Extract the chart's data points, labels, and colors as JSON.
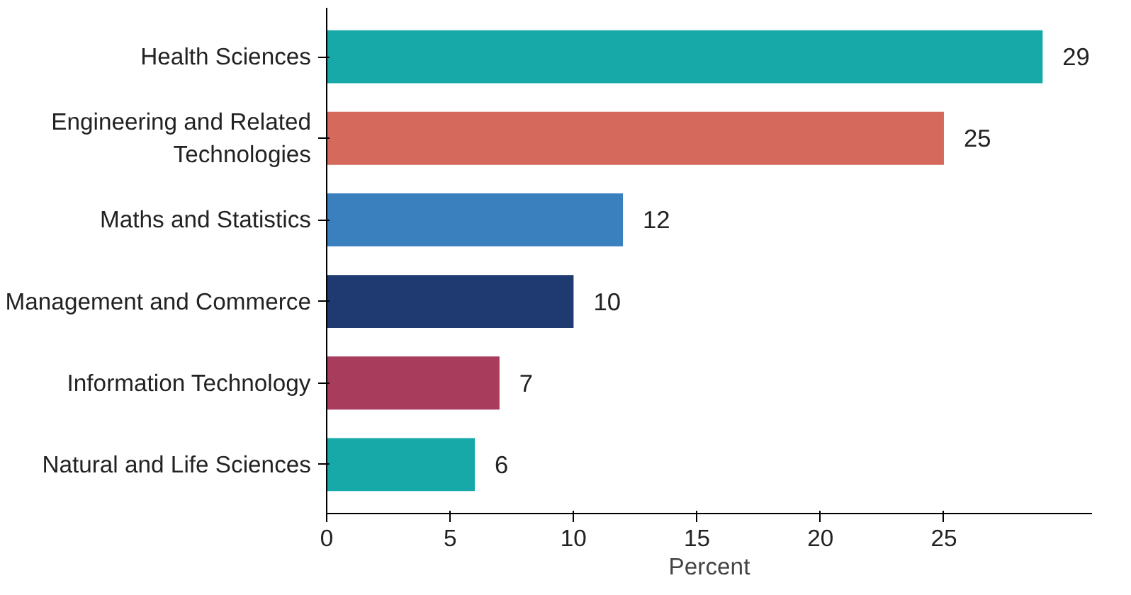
{
  "chart_data": {
    "type": "bar",
    "orientation": "horizontal",
    "xlabel": "Percent",
    "categories": [
      "Health Sciences",
      "Engineering and Related Technologies",
      "Maths and Statistics",
      "Management and Commerce",
      "Information Technology",
      "Natural and Life Sciences"
    ],
    "values": [
      29,
      25,
      12,
      10,
      7,
      6
    ],
    "colors": [
      "#17a8a8",
      "#d4695c",
      "#3a80bf",
      "#1f3a70",
      "#a83c5c",
      "#17a8a8"
    ],
    "data_labels": true,
    "xlim": [
      0,
      31
    ],
    "xticks": [
      0,
      5,
      10,
      15,
      20,
      25
    ],
    "grid": false
  }
}
